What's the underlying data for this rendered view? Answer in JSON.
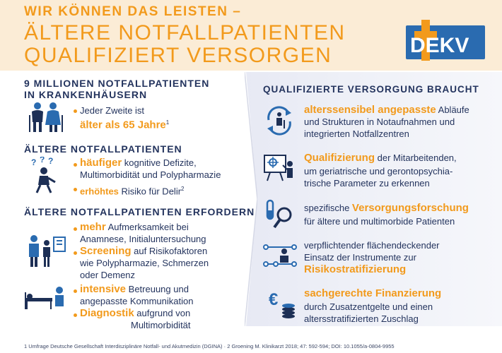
{
  "header": {
    "line1": "WIR KÖNNEN DAS LEISTEN –",
    "line2": "ÄLTERE NOTFALLPATIENTEN",
    "line3": "QUALIFIZIERT VERSORGEN"
  },
  "logo": {
    "text": "DEKV"
  },
  "left": {
    "sec1_title_l1": "9 MILLIONEN NOTFALLPATIENTEN",
    "sec1_title_l2": "IN KRANKENHÄUSERN",
    "sec1_b1_l1": "Jeder Zweite ist",
    "sec1_b1_hl": "älter als 65 Jahre",
    "sec1_b1_sup": "1",
    "sec2_title": "ÄLTERE NOTFALLPATIENTEN",
    "sec2_b1_hl": "häufiger",
    "sec2_b1_rest": " kognitive Defizite,",
    "sec2_b1_l2": "Multimorbidität und Polypharmazie",
    "sec2_b2_hl": "erhöhtes",
    "sec2_b2_rest": " Risiko für Delir",
    "sec2_b2_sup": "2",
    "sec3_title": "ÄLTERE NOTFALLPATIENTEN ERFORDERN",
    "sec3_b1_hl": "mehr",
    "sec3_b1_rest": " Aufmerksamkeit bei",
    "sec3_b1_l2": "Anamnese, Initialuntersuchung",
    "sec3_b2_hl": "Screening",
    "sec3_b2_rest": " auf Risikofaktoren",
    "sec3_b2_l2": "wie Polypharmazie, Schmerzen",
    "sec3_b2_l3": "oder Demenz",
    "sec3_b3_hl": "intensive",
    "sec3_b3_rest": " Betreuung und",
    "sec3_b3_l2": "angepasste Kommunikation",
    "sec3_b4_hl": "Diagnostik",
    "sec3_b4_rest": " aufgrund von",
    "sec3_b4_l2": "Multimorbidität"
  },
  "right": {
    "title": "QUALIFIZIERTE VERSORGUNG BRAUCHT",
    "i1_hl": "alterssensibel angepasste",
    "i1_rest": " Abläufe",
    "i1_l2": "und Strukturen in Notaufnahmen und",
    "i1_l3": "integrierten Notfallzentren",
    "i2_hl": "Qualifizierung",
    "i2_rest": " der Mitarbeitenden,",
    "i2_l2": "um geriatrische und gerontopsychia-",
    "i2_l3": "trische Parameter zu erkennen",
    "i3_pre": "spezifische ",
    "i3_hl": "Versorgungsforschung",
    "i3_l2": "für ältere und multimorbide Patienten",
    "i4_l1": "verpflichtender flächendeckender",
    "i4_l2": "Einsatz der Instrumente zur",
    "i4_hl": "Risikostratifizierung",
    "i5_hl": "sachgerechte Finanzierung",
    "i5_l2": "durch Zusatzentgelte und einen",
    "i5_l3": "altersstratifizierten Zuschlag"
  },
  "footnote": "1 Umfrage Deutsche Gesellschaft Interdisziplinäre Notfall- und Akutmedizin (DGINA) · 2 Groening M. Klinikarzt 2018; 47: 592-594; DOI: 10.1055/a-0804-9955",
  "colors": {
    "accent": "#f29a1c",
    "navy": "#24345e",
    "icon_blue": "#2a6bb0",
    "header_bg": "#fbecd6"
  }
}
